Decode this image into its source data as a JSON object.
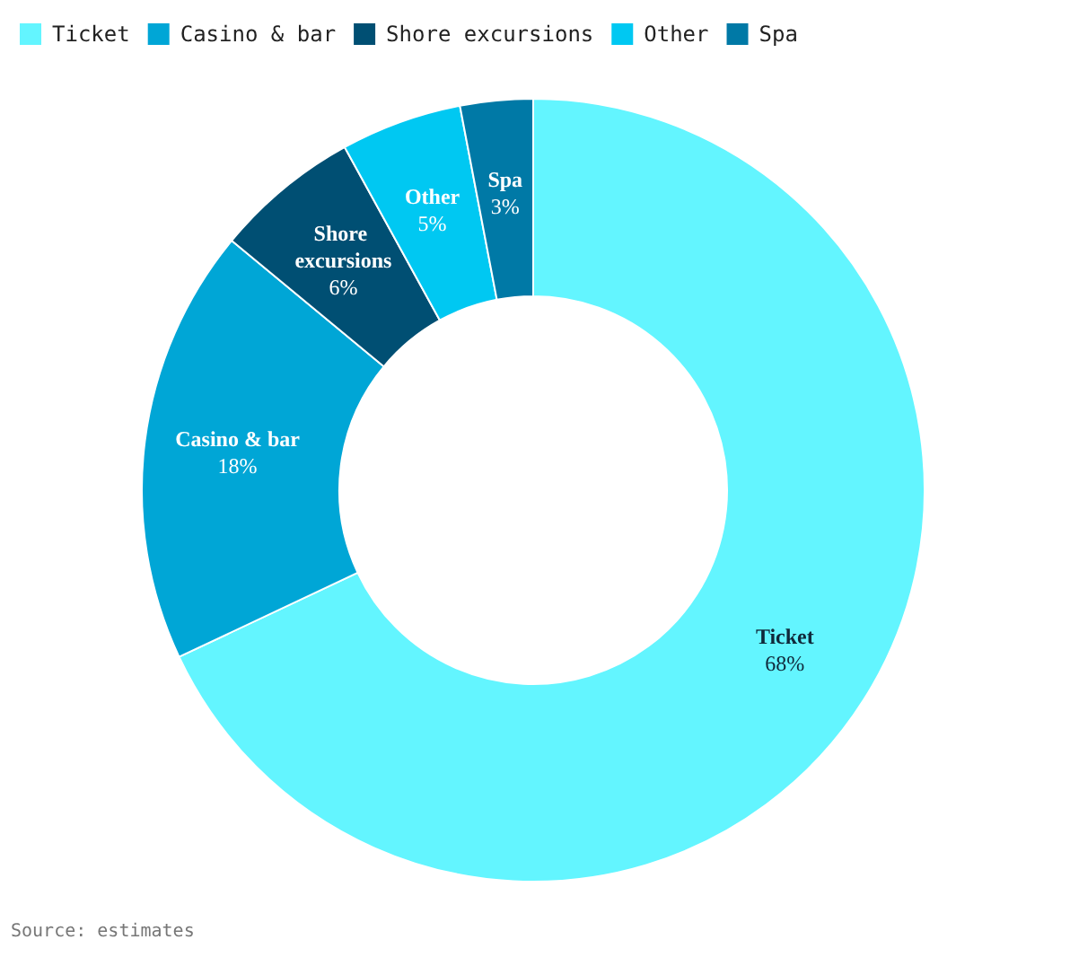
{
  "chart_data": {
    "type": "donut",
    "categories": [
      "Ticket",
      "Casino & bar",
      "Shore excursions",
      "Other",
      "Spa"
    ],
    "values": [
      68,
      18,
      6,
      5,
      3
    ],
    "colors": [
      "#63f5ff",
      "#00a6d6",
      "#004f73",
      "#00c8f2",
      "#0079a6"
    ],
    "legend": "top left",
    "value_labels": [
      "68%",
      "18%",
      "6%",
      "5%",
      "3%"
    ],
    "annotations": [
      "Source: estimates"
    ]
  }
}
